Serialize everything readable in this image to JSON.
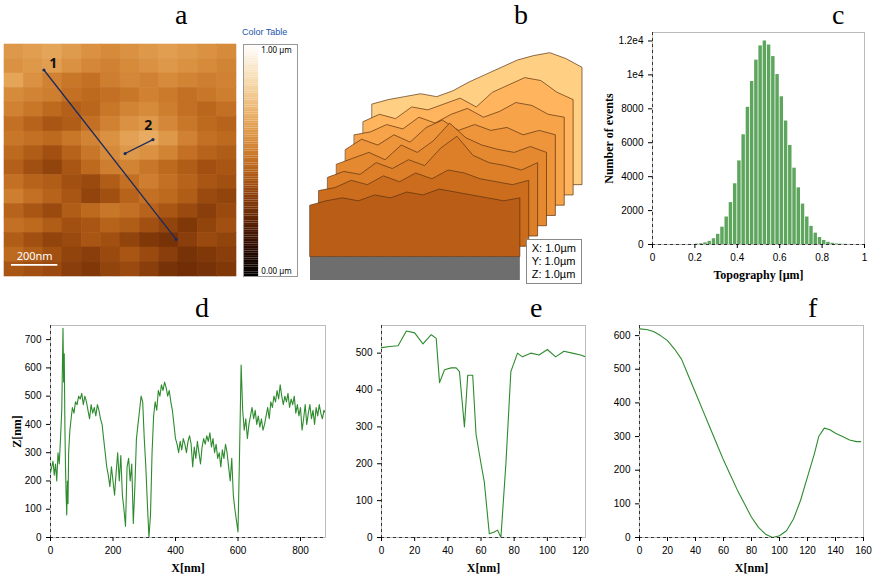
{
  "chart_data": [
    {
      "type": "heatmap",
      "title": "a",
      "xlim": [
        0,
        1
      ],
      "ylim": [
        0,
        1
      ],
      "tick_labels": false,
      "cells": [
        [
          0.62,
          0.64,
          0.66,
          0.63,
          0.6,
          0.58,
          0.6,
          0.62,
          0.64,
          0.62,
          0.6,
          0.58
        ],
        [
          0.6,
          0.62,
          0.64,
          0.6,
          0.57,
          0.55,
          0.58,
          0.6,
          0.62,
          0.6,
          0.58,
          0.56
        ],
        [
          0.66,
          0.6,
          0.55,
          0.52,
          0.5,
          0.54,
          0.57,
          0.55,
          0.58,
          0.56,
          0.54,
          0.55
        ],
        [
          0.58,
          0.56,
          0.54,
          0.5,
          0.48,
          0.5,
          0.52,
          0.55,
          0.53,
          0.5,
          0.52,
          0.54
        ],
        [
          0.55,
          0.52,
          0.48,
          0.45,
          0.47,
          0.52,
          0.56,
          0.58,
          0.54,
          0.5,
          0.47,
          0.5
        ],
        [
          0.5,
          0.46,
          0.42,
          0.44,
          0.5,
          0.55,
          0.6,
          0.62,
          0.57,
          0.52,
          0.48,
          0.46
        ],
        [
          0.52,
          0.5,
          0.48,
          0.52,
          0.56,
          0.6,
          0.65,
          0.68,
          0.62,
          0.55,
          0.5,
          0.48
        ],
        [
          0.48,
          0.44,
          0.4,
          0.46,
          0.52,
          0.58,
          0.62,
          0.6,
          0.56,
          0.5,
          0.46,
          0.44
        ],
        [
          0.45,
          0.4,
          0.36,
          0.42,
          0.48,
          0.54,
          0.56,
          0.52,
          0.48,
          0.44,
          0.4,
          0.42
        ],
        [
          0.5,
          0.46,
          0.44,
          0.4,
          0.38,
          0.44,
          0.5,
          0.54,
          0.5,
          0.46,
          0.42,
          0.4
        ],
        [
          0.54,
          0.5,
          0.46,
          0.42,
          0.36,
          0.4,
          0.46,
          0.5,
          0.48,
          0.44,
          0.38,
          0.36
        ],
        [
          0.46,
          0.42,
          0.38,
          0.44,
          0.48,
          0.52,
          0.5,
          0.46,
          0.42,
          0.38,
          0.34,
          0.38
        ],
        [
          0.5,
          0.48,
          0.44,
          0.4,
          0.42,
          0.46,
          0.44,
          0.4,
          0.36,
          0.32,
          0.36,
          0.4
        ],
        [
          0.44,
          0.4,
          0.36,
          0.38,
          0.42,
          0.4,
          0.36,
          0.32,
          0.3,
          0.34,
          0.38,
          0.36
        ],
        [
          0.48,
          0.44,
          0.4,
          0.36,
          0.34,
          0.38,
          0.42,
          0.38,
          0.34,
          0.3,
          0.32,
          0.34
        ],
        [
          0.42,
          0.4,
          0.38,
          0.34,
          0.32,
          0.36,
          0.38,
          0.34,
          0.3,
          0.28,
          0.3,
          0.32
        ]
      ],
      "color_range": [
        0,
        1
      ],
      "colorbar_title": "Color Table",
      "colorbar_ticks": [
        {
          "value": 1,
          "label": "1.00 µm"
        },
        {
          "value": 0,
          "label": "0.00 µm"
        }
      ],
      "scale_bar": {
        "label": "200nm",
        "length": 0.2
      },
      "annotations": [
        {
          "text": "1",
          "x": [
            0.17,
            0.74
          ],
          "y": [
            0.89,
            0.16
          ],
          "label_x": 0.21,
          "label_y": 0.92
        },
        {
          "text": "2",
          "x": [
            0.52,
            0.64
          ],
          "y": [
            0.53,
            0.59
          ],
          "label_x": 0.62,
          "label_y": 0.65
        }
      ]
    },
    {
      "type": "surface",
      "title": "b",
      "zlim": [
        0,
        1
      ],
      "tick_labels": false,
      "cells": [
        [
          0.55,
          0.58,
          0.6,
          0.62,
          0.6,
          0.64,
          0.7,
          0.75,
          0.8,
          0.85,
          0.88,
          0.9,
          0.86,
          0.8
        ],
        [
          0.5,
          0.55,
          0.52,
          0.6,
          0.58,
          0.62,
          0.66,
          0.6,
          0.7,
          0.75,
          0.8,
          0.78,
          0.7,
          0.65
        ],
        [
          0.48,
          0.5,
          0.55,
          0.52,
          0.6,
          0.56,
          0.62,
          0.66,
          0.6,
          0.64,
          0.7,
          0.68,
          0.62,
          0.6
        ],
        [
          0.45,
          0.52,
          0.48,
          0.55,
          0.5,
          0.6,
          0.65,
          0.58,
          0.62,
          0.58,
          0.6,
          0.55,
          0.58,
          0.55
        ],
        [
          0.42,
          0.46,
          0.5,
          0.45,
          0.55,
          0.5,
          0.58,
          0.7,
          0.6,
          0.55,
          0.52,
          0.5,
          0.54,
          0.5
        ],
        [
          0.4,
          0.44,
          0.42,
          0.5,
          0.46,
          0.52,
          0.48,
          0.6,
          0.68,
          0.55,
          0.5,
          0.48,
          0.45,
          0.5
        ],
        [
          0.38,
          0.4,
          0.45,
          0.42,
          0.48,
          0.44,
          0.5,
          0.46,
          0.52,
          0.5,
          0.46,
          0.44,
          0.42,
          0.45
        ],
        [
          0.35,
          0.38,
          0.4,
          0.38,
          0.42,
          0.4,
          0.44,
          0.42,
          0.46,
          0.44,
          0.42,
          0.4,
          0.38,
          0.4
        ]
      ],
      "axis_labels": [
        "X: 1.0µm",
        "Y: 1.0µm",
        "Z: 1.0µm"
      ]
    },
    {
      "type": "histogram",
      "title": "c",
      "bins": [
        0.2,
        0.22,
        0.24,
        0.26,
        0.28,
        0.3,
        0.32,
        0.34,
        0.36,
        0.38,
        0.4,
        0.42,
        0.44,
        0.46,
        0.48,
        0.5,
        0.52,
        0.54,
        0.56,
        0.58,
        0.6,
        0.62,
        0.64,
        0.66,
        0.68,
        0.7,
        0.72,
        0.74,
        0.76,
        0.78,
        0.8,
        0.82,
        0.84,
        0.86,
        0.88,
        0.9,
        0.92,
        0.94,
        0.96
      ],
      "counts": [
        22,
        46,
        95,
        185,
        340,
        600,
        1020,
        1620,
        2470,
        3580,
        4930,
        6470,
        8090,
        9610,
        10870,
        11710,
        12000,
        11760,
        11080,
        10020,
        8710,
        7280,
        5840,
        4500,
        3340,
        2380,
        1620,
        1070,
        670,
        410,
        240,
        130,
        72,
        37,
        18,
        10,
        5,
        2
      ],
      "xlim": [
        0,
        1
      ],
      "xticks": [
        0,
        0.2,
        0.4,
        0.6,
        0.8,
        1
      ],
      "ylim": [
        0,
        12500
      ],
      "yticks": [
        0,
        2000,
        4000,
        6000,
        8000,
        {
          "value": 10000,
          "label": "1e4"
        },
        {
          "value": 12000,
          "label": "1.2e4"
        }
      ],
      "x_label": "Topography [µm]",
      "y_label": "Number of events",
      "color": "#5ea55e"
    },
    {
      "type": "line",
      "title": "d",
      "x": [
        0,
        4,
        8,
        12,
        16,
        20,
        24,
        28,
        32,
        36,
        38,
        40,
        42,
        44,
        46,
        48,
        50,
        52,
        54,
        56,
        58,
        62,
        66,
        70,
        75,
        80,
        85,
        90,
        95,
        100,
        105,
        110,
        115,
        120,
        125,
        130,
        135,
        140,
        145,
        150,
        155,
        160,
        165,
        170,
        175,
        180,
        185,
        190,
        195,
        200,
        205,
        210,
        215,
        220,
        225,
        230,
        235,
        240,
        245,
        250,
        255,
        260,
        265,
        270,
        275,
        280,
        285,
        290,
        295,
        300,
        305,
        310,
        315,
        320,
        325,
        330,
        335,
        340,
        345,
        350,
        355,
        360,
        365,
        370,
        375,
        380,
        385,
        390,
        395,
        400,
        405,
        410,
        415,
        420,
        425,
        430,
        435,
        440,
        445,
        450,
        455,
        460,
        465,
        470,
        475,
        480,
        485,
        490,
        495,
        500,
        505,
        510,
        515,
        520,
        525,
        530,
        535,
        540,
        545,
        550,
        555,
        560,
        565,
        570,
        575,
        580,
        585,
        590,
        595,
        600,
        605,
        610,
        615,
        620,
        625,
        630,
        635,
        640,
        645,
        650,
        655,
        660,
        665,
        670,
        675,
        680,
        685,
        690,
        695,
        700,
        705,
        710,
        715,
        720,
        725,
        730,
        735,
        740,
        745,
        750,
        755,
        760,
        765,
        770,
        775,
        780,
        785,
        790,
        795,
        800,
        805,
        810,
        815,
        820,
        825,
        830,
        835,
        840,
        845,
        850,
        855,
        860,
        865,
        870,
        875,
        880
      ],
      "values": [
        230,
        250,
        270,
        220,
        260,
        200,
        300,
        260,
        350,
        450,
        600,
        740,
        550,
        650,
        400,
        250,
        150,
        80,
        200,
        120,
        300,
        380,
        420,
        460,
        440,
        480,
        470,
        500,
        490,
        510,
        470,
        500,
        480,
        450,
        420,
        470,
        440,
        460,
        430,
        470,
        450,
        420,
        400,
        350,
        300,
        250,
        220,
        180,
        250,
        200,
        150,
        230,
        300,
        200,
        290,
        150,
        100,
        40,
        250,
        280,
        200,
        260,
        50,
        180,
        350,
        400,
        450,
        500,
        480,
        350,
        250,
        120,
        0,
        80,
        300,
        430,
        480,
        450,
        520,
        500,
        540,
        520,
        550,
        530,
        500,
        520,
        480,
        450,
        400,
        350,
        330,
        300,
        340,
        310,
        350,
        330,
        300,
        340,
        360,
        330,
        250,
        320,
        280,
        340,
        300,
        260,
        320,
        350,
        330,
        360,
        340,
        370,
        320,
        350,
        300,
        330,
        280,
        300,
        250,
        310,
        280,
        330,
        300,
        250,
        200,
        280,
        150,
        100,
        60,
        20,
        300,
        610,
        450,
        380,
        420,
        350,
        400,
        430,
        460,
        420,
        450,
        400,
        430,
        390,
        420,
        380,
        400,
        430,
        460,
        420,
        480,
        460,
        500,
        480,
        520,
        490,
        540,
        500,
        470,
        500,
        480,
        510,
        460,
        490,
        470,
        500,
        440,
        470,
        430,
        460,
        380,
        420,
        470,
        400,
        440,
        470,
        420,
        450,
        400,
        460,
        430,
        470,
        440,
        420,
        450,
        440
      ],
      "xlim": [
        0,
        880
      ],
      "xticks": [
        0,
        200,
        400,
        600,
        800
      ],
      "ylim": [
        0,
        750
      ],
      "yticks": [
        0,
        100,
        200,
        300,
        400,
        500,
        600,
        700
      ],
      "x_label": "X[nm]",
      "y_label": "Z[nm]",
      "color": "#2e8b2e"
    },
    {
      "type": "line",
      "title": "e",
      "x": [
        0,
        5,
        10,
        15,
        20,
        25,
        30,
        33,
        35,
        38,
        42,
        45,
        47,
        50,
        52,
        55,
        57,
        60,
        62,
        65,
        68,
        70,
        72,
        75,
        78,
        82,
        85,
        90,
        95,
        100,
        105,
        110,
        115,
        120,
        123
      ],
      "values": [
        515,
        518,
        520,
        560,
        555,
        525,
        550,
        540,
        420,
        455,
        460,
        460,
        450,
        300,
        440,
        440,
        280,
        200,
        150,
        10,
        15,
        20,
        0,
        200,
        450,
        500,
        490,
        500,
        495,
        510,
        490,
        505,
        500,
        495,
        490
      ],
      "xlim": [
        0,
        123
      ],
      "xticks": [
        0,
        20,
        40,
        60,
        80,
        100,
        120
      ],
      "ylim": [
        0,
        575
      ],
      "yticks": [
        0,
        100,
        200,
        300,
        400,
        500
      ],
      "x_label": "X[nm]",
      "color": "#2e8b2e"
    },
    {
      "type": "line",
      "title": "f",
      "x": [
        0,
        5,
        10,
        15,
        20,
        25,
        30,
        35,
        40,
        45,
        50,
        55,
        60,
        65,
        70,
        75,
        80,
        85,
        90,
        95,
        100,
        105,
        110,
        115,
        120,
        125,
        128,
        132,
        136,
        140,
        145,
        150,
        155,
        158
      ],
      "values": [
        620,
        618,
        612,
        600,
        585,
        560,
        530,
        480,
        430,
        380,
        330,
        280,
        230,
        185,
        140,
        100,
        60,
        30,
        10,
        0,
        5,
        20,
        55,
        110,
        180,
        250,
        300,
        325,
        320,
        310,
        300,
        290,
        285,
        285
      ],
      "xlim": [
        0,
        160
      ],
      "xticks": [
        0,
        20,
        40,
        60,
        80,
        100,
        120,
        140,
        160
      ],
      "ylim": [
        0,
        630
      ],
      "yticks": [
        0,
        100,
        200,
        300,
        400,
        500,
        600
      ],
      "x_label": "X[nm]",
      "color": "#2e8b2e"
    }
  ]
}
